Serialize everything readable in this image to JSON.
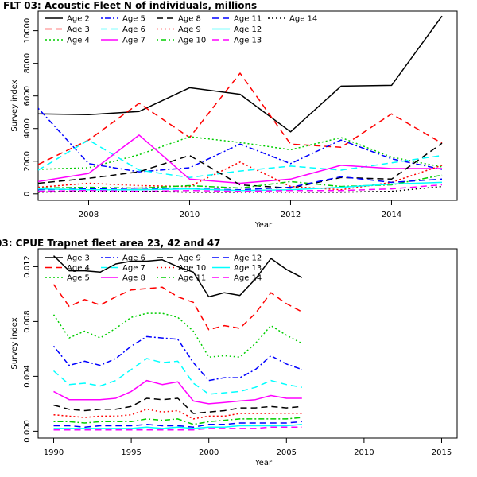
{
  "colors": {
    "black": "#000000",
    "red": "#ff0000",
    "green": "#00cd00",
    "blue": "#0000ff",
    "cyan": "#00ffff",
    "magenta": "#ff00ff"
  },
  "chart_data": [
    {
      "type": "line",
      "title": "FLT 03: Acoustic Fleet   N of individuals, millions",
      "xlabel": "Year",
      "ylabel": "Survey index",
      "xlim": [
        2007,
        2015.3
      ],
      "ylim": [
        -400,
        11200
      ],
      "xticks": [
        2008,
        2010,
        2012,
        2014
      ],
      "yticks": [
        0,
        2000,
        4000,
        6000,
        8000,
        10000
      ],
      "grid": false,
      "legend": "top-left",
      "x": [
        2007,
        2008,
        2009,
        2010,
        2011,
        2012,
        2013,
        2014,
        2015
      ],
      "series": [
        {
          "name": "Age 2",
          "color": "black",
          "dash": "solid",
          "values": [
            4900,
            4850,
            5050,
            6500,
            6100,
            3800,
            6600,
            6650,
            10900
          ]
        },
        {
          "name": "Age 3",
          "color": "red",
          "dash": "longdash",
          "values": [
            1800,
            3300,
            5550,
            3450,
            7400,
            3050,
            2850,
            4900,
            3100
          ]
        },
        {
          "name": "Age 4",
          "color": "green",
          "dash": "dotted",
          "values": [
            1500,
            1600,
            2400,
            3500,
            3150,
            2700,
            3450,
            2250,
            1650
          ]
        },
        {
          "name": "Age 5",
          "color": "blue",
          "dash": "dotdash",
          "values": [
            5250,
            1850,
            1350,
            1600,
            3050,
            1850,
            3300,
            2150,
            1500
          ]
        },
        {
          "name": "Age 6",
          "color": "cyan",
          "dash": "longdash",
          "values": [
            1450,
            3300,
            1450,
            1000,
            1400,
            1700,
            1450,
            1900,
            2350
          ]
        },
        {
          "name": "Age 7",
          "color": "magenta",
          "dash": "solid",
          "values": [
            750,
            1250,
            3600,
            900,
            650,
            900,
            1750,
            1550,
            1550
          ]
        },
        {
          "name": "Age 8",
          "color": "black",
          "dash": "longdash",
          "values": [
            650,
            950,
            1350,
            2350,
            550,
            350,
            1000,
            900,
            3100
          ]
        },
        {
          "name": "Age 9",
          "color": "red",
          "dash": "dotted",
          "values": [
            400,
            650,
            500,
            450,
            1950,
            450,
            250,
            700,
            1750
          ]
        },
        {
          "name": "Age 10",
          "color": "green",
          "dash": "dotdash",
          "values": [
            350,
            400,
            350,
            500,
            350,
            750,
            450,
            550,
            1150
          ]
        },
        {
          "name": "Age 11",
          "color": "blue",
          "dash": "longdash",
          "values": [
            250,
            300,
            350,
            300,
            250,
            400,
            1050,
            700,
            900
          ]
        },
        {
          "name": "Age 12",
          "color": "cyan",
          "dash": "solid",
          "values": [
            300,
            250,
            250,
            300,
            200,
            250,
            400,
            600,
            700
          ]
        },
        {
          "name": "Age 13",
          "color": "magenta",
          "dash": "longdash",
          "values": [
            150,
            200,
            150,
            200,
            150,
            200,
            200,
            300,
            550
          ]
        },
        {
          "name": "Age 14",
          "color": "black",
          "dash": "dotted",
          "values": [
            100,
            150,
            150,
            100,
            100,
            100,
            100,
            150,
            450
          ]
        }
      ]
    },
    {
      "type": "line",
      "title": "03: CPUE Trapnet fleet area 23, 42 and 47",
      "xlabel": "Year",
      "ylabel": "Survey index",
      "xlim": [
        1989,
        2016
      ],
      "ylim": [
        -0.0005,
        0.0133
      ],
      "xticks": [
        1990,
        1995,
        2000,
        2005,
        2010,
        2015
      ],
      "yticks": [
        0.0,
        0.004,
        0.008,
        0.012
      ],
      "ytick_labels": [
        "0.000",
        "0.004",
        "0.008",
        "0.012"
      ],
      "grid": false,
      "legend": "top-left",
      "x": [
        1990,
        1991,
        1992,
        1993,
        1994,
        1995,
        1996,
        1997,
        1998,
        1999,
        2000,
        2001,
        2002,
        2003,
        2004,
        2005,
        2006
      ],
      "series": [
        {
          "name": "Age 3",
          "color": "black",
          "dash": "solid",
          "values": [
            0.0128,
            0.0117,
            0.0117,
            0.0116,
            0.0122,
            0.0124,
            0.0124,
            0.0125,
            0.012,
            0.0116,
            0.0098,
            0.0101,
            0.0099,
            0.0111,
            0.0126,
            0.0118,
            0.0112
          ]
        },
        {
          "name": "Age 4",
          "color": "red",
          "dash": "longdash",
          "values": [
            0.0107,
            0.0091,
            0.0096,
            0.0092,
            0.0098,
            0.0103,
            0.0104,
            0.0105,
            0.0098,
            0.0094,
            0.0074,
            0.0077,
            0.0075,
            0.0086,
            0.0101,
            0.0093,
            0.0087
          ]
        },
        {
          "name": "Age 5",
          "color": "green",
          "dash": "dotted",
          "values": [
            0.0085,
            0.0068,
            0.0073,
            0.0068,
            0.0075,
            0.0083,
            0.0086,
            0.0086,
            0.0083,
            0.0073,
            0.0054,
            0.0055,
            0.0054,
            0.0064,
            0.0077,
            0.007,
            0.0064
          ]
        },
        {
          "name": "Age 6",
          "color": "blue",
          "dash": "dotdash",
          "values": [
            0.0062,
            0.0048,
            0.0051,
            0.0048,
            0.0053,
            0.0062,
            0.0069,
            0.0068,
            0.0067,
            0.005,
            0.0037,
            0.0039,
            0.0039,
            0.0045,
            0.0055,
            0.0049,
            0.0045
          ]
        },
        {
          "name": "Age 7",
          "color": "cyan",
          "dash": "longdash",
          "values": [
            0.0044,
            0.0034,
            0.0035,
            0.0033,
            0.0037,
            0.0045,
            0.0053,
            0.005,
            0.0051,
            0.0035,
            0.0027,
            0.0028,
            0.0029,
            0.0032,
            0.0037,
            0.0034,
            0.0032
          ]
        },
        {
          "name": "Age 8",
          "color": "magenta",
          "dash": "solid",
          "values": [
            0.0029,
            0.0023,
            0.0023,
            0.0023,
            0.0024,
            0.0029,
            0.0037,
            0.0034,
            0.0036,
            0.0022,
            0.002,
            0.0021,
            0.0022,
            0.0023,
            0.0026,
            0.0024,
            0.0024
          ]
        },
        {
          "name": "Age 9",
          "color": "black",
          "dash": "longdash",
          "values": [
            0.0019,
            0.0016,
            0.0015,
            0.0016,
            0.0016,
            0.0018,
            0.0024,
            0.0023,
            0.0024,
            0.0013,
            0.0014,
            0.0015,
            0.0017,
            0.0017,
            0.0018,
            0.0017,
            0.0018
          ]
        },
        {
          "name": "Age 10",
          "color": "red",
          "dash": "dotted",
          "values": [
            0.0012,
            0.0011,
            0.001,
            0.0011,
            0.0011,
            0.0012,
            0.0016,
            0.0014,
            0.0015,
            0.0009,
            0.0011,
            0.0011,
            0.0013,
            0.0013,
            0.0013,
            0.0013,
            0.0013
          ]
        },
        {
          "name": "Age 11",
          "color": "green",
          "dash": "dotdash",
          "values": [
            0.0007,
            0.0007,
            0.0006,
            0.0007,
            0.0007,
            0.0007,
            0.0009,
            0.0008,
            0.0009,
            0.0005,
            0.0007,
            0.0008,
            0.0009,
            0.0009,
            0.0009,
            0.0009,
            0.001
          ]
        },
        {
          "name": "Age 12",
          "color": "blue",
          "dash": "longdash",
          "values": [
            0.0004,
            0.0004,
            0.0003,
            0.0004,
            0.0004,
            0.0004,
            0.0005,
            0.0004,
            0.0004,
            0.0003,
            0.0005,
            0.0005,
            0.0006,
            0.0006,
            0.0006,
            0.0006,
            0.0007
          ]
        },
        {
          "name": "Age 13",
          "color": "cyan",
          "dash": "solid",
          "values": [
            0.0002,
            0.0002,
            0.0002,
            0.0002,
            0.0002,
            0.0002,
            0.0003,
            0.0002,
            0.0003,
            0.0002,
            0.0003,
            0.0003,
            0.0004,
            0.0004,
            0.0004,
            0.0004,
            0.0005
          ]
        },
        {
          "name": "Age 14",
          "color": "magenta",
          "dash": "longdash",
          "values": [
            0.0001,
            0.0001,
            0.0001,
            0.0001,
            0.0001,
            0.0001,
            0.0001,
            0.0001,
            0.0001,
            0.0001,
            0.0002,
            0.0002,
            0.0002,
            0.0002,
            0.0003,
            0.0003,
            0.0003
          ]
        }
      ]
    }
  ]
}
